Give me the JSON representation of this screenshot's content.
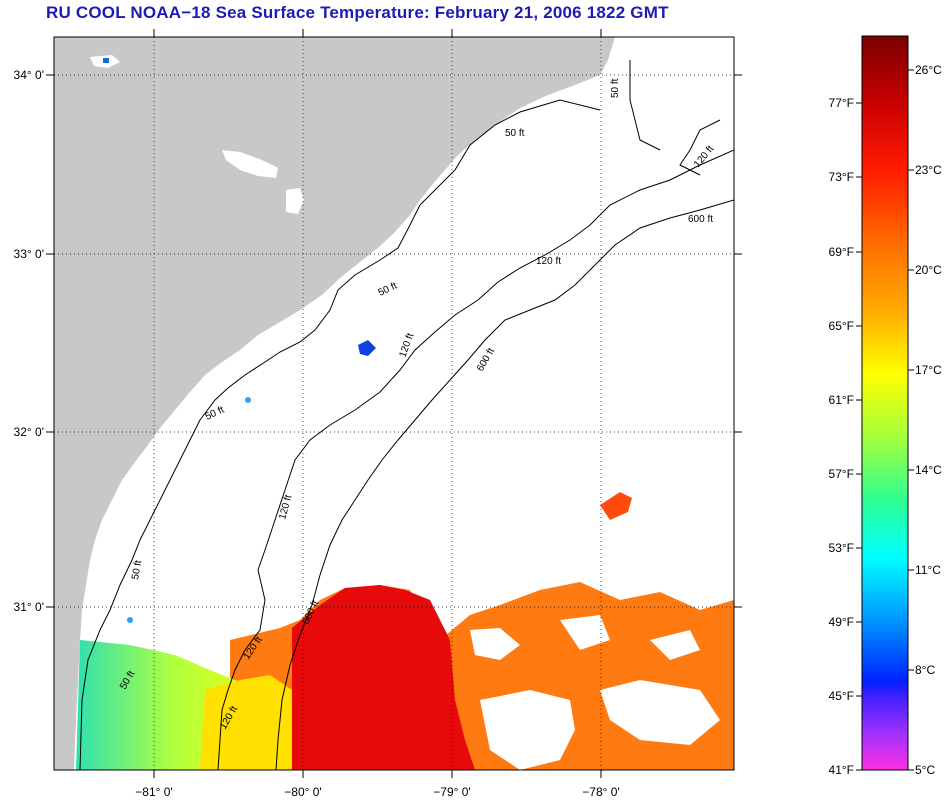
{
  "title": "RU COOL  NOAA−18  Sea Surface Temperature:  February 21, 2006 1822 GMT",
  "map": {
    "lat_labels": [
      "34° 0'",
      "33° 0'",
      "32° 0'",
      "31° 0'"
    ],
    "lon_labels": [
      "−81° 0'",
      "−80° 0'",
      "−79° 0'",
      "−78° 0'"
    ],
    "contour_labels": [
      "50 ft",
      "50 ft",
      "50 ft",
      "50 ft",
      "50 ft",
      "50 ft",
      "120 ft",
      "120 ft",
      "120 ft",
      "120 ft",
      "120 ft",
      "120 ft",
      "600 ft",
      "600 ft",
      "600 ft"
    ],
    "colors": {
      "land": "#c8c8c8",
      "cloud": "#ffffff",
      "contour": "#000000",
      "grid": "#000000"
    }
  },
  "colorbar": {
    "f_labels": [
      "77°F",
      "73°F",
      "69°F",
      "65°F",
      "61°F",
      "57°F",
      "53°F",
      "49°F",
      "45°F",
      "41°F"
    ],
    "c_labels": [
      "26°C",
      "23°C",
      "20°C",
      "17°C",
      "14°C",
      "11°C",
      "8°C",
      "5°C"
    ],
    "gradient": [
      "#7a0000",
      "#c80000",
      "#ff1a00",
      "#ff6a00",
      "#ffb000",
      "#ffff00",
      "#a0ff40",
      "#30ff90",
      "#00ffff",
      "#0090ff",
      "#0020ff",
      "#8030ff",
      "#ff30e0"
    ]
  }
}
